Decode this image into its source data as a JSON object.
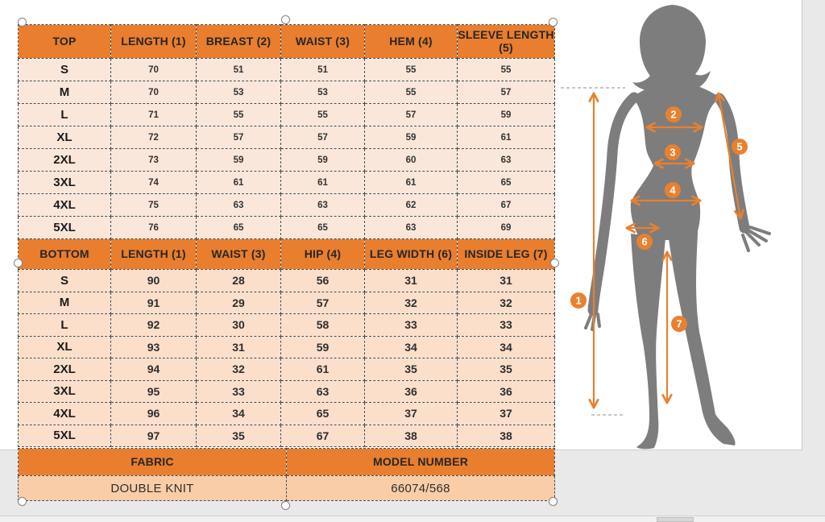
{
  "size_chart": {
    "top_table": {
      "headers": [
        "TOP",
        "LENGTH (1)",
        "BREAST (2)",
        "WAIST (3)",
        "HEM (4)",
        "SLEEVE LENGTH (5)"
      ],
      "rows": [
        [
          "S",
          "70",
          "51",
          "51",
          "55",
          "55"
        ],
        [
          "M",
          "70",
          "53",
          "53",
          "55",
          "57"
        ],
        [
          "L",
          "71",
          "55",
          "55",
          "57",
          "59"
        ],
        [
          "XL",
          "72",
          "57",
          "57",
          "59",
          "61"
        ],
        [
          "2XL",
          "73",
          "59",
          "59",
          "60",
          "63"
        ],
        [
          "3XL",
          "74",
          "61",
          "61",
          "61",
          "65"
        ],
        [
          "4XL",
          "75",
          "63",
          "63",
          "62",
          "67"
        ],
        [
          "5XL",
          "76",
          "65",
          "65",
          "63",
          "69"
        ]
      ]
    },
    "bottom_table": {
      "headers": [
        "BOTTOM",
        "LENGTH (1)",
        "WAIST (3)",
        "HIP (4)",
        "LEG WIDTH (6)",
        "INSIDE LEG (7)"
      ],
      "rows": [
        [
          "S",
          "90",
          "28",
          "56",
          "31",
          "31"
        ],
        [
          "M",
          "91",
          "29",
          "57",
          "32",
          "32"
        ],
        [
          "L",
          "92",
          "30",
          "58",
          "33",
          "33"
        ],
        [
          "XL",
          "93",
          "31",
          "59",
          "34",
          "34"
        ],
        [
          "2XL",
          "94",
          "32",
          "61",
          "35",
          "35"
        ],
        [
          "3XL",
          "95",
          "33",
          "63",
          "36",
          "36"
        ],
        [
          "4XL",
          "96",
          "34",
          "65",
          "37",
          "37"
        ],
        [
          "5XL",
          "97",
          "35",
          "67",
          "38",
          "38"
        ]
      ]
    },
    "footer": {
      "fabric_label": "FABRIC",
      "fabric_value": "DOUBLE KNIT",
      "model_label": "MODEL NUMBER",
      "model_value": "66074/568"
    }
  },
  "figure": {
    "markers": [
      "1",
      "2",
      "3",
      "4",
      "5",
      "6",
      "7"
    ]
  },
  "colors": {
    "header_orange": "#E87E2E",
    "top_row_bg": "#FAE7DA",
    "bottom_row_bg": "#FBDFCB",
    "footer_row_bg": "#F9CDA7",
    "silhouette_gray": "#7D7D7D",
    "annotation_orange": "#E8812F"
  }
}
